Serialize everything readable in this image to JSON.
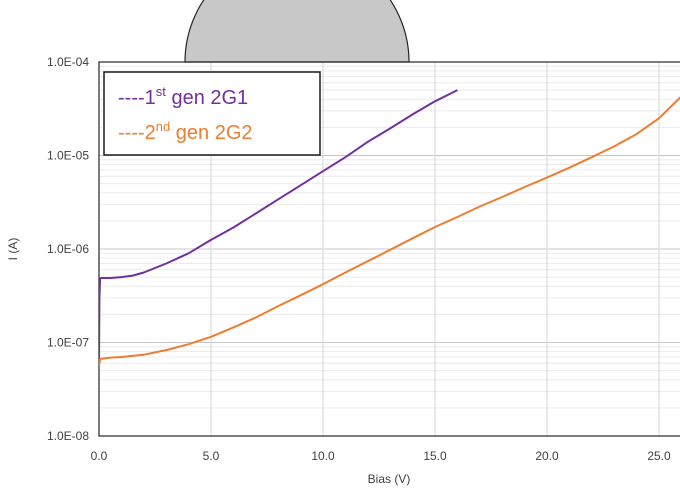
{
  "chart_data": {
    "type": "line",
    "title": "",
    "xlabel": "Bias (V)",
    "ylabel": "I (A)",
    "xlim": [
      0,
      26
    ],
    "ylim": [
      1e-08,
      0.0001
    ],
    "y_scale": "log",
    "grid": true,
    "legend_position": "top-left",
    "x_ticks": [
      "0.0",
      "5.0",
      "10.0",
      "15.0",
      "20.0",
      "25.0"
    ],
    "x_tick_values": [
      0,
      5,
      10,
      15,
      20,
      25
    ],
    "y_ticks": [
      "1.0E-08",
      "1.0E-07",
      "1.0E-06",
      "1.0E-05",
      "1.0E-04"
    ],
    "y_tick_values": [
      1e-08,
      1e-07,
      1e-06,
      1e-05,
      0.0001
    ],
    "series": [
      {
        "name": "----1st gen 2G1",
        "legend_prefix": "----1",
        "legend_sup": "st",
        "legend_suffix": " gen 2G1",
        "color": "#7030A0",
        "x": [
          0.0,
          0.02,
          0.05,
          0.1,
          0.2,
          0.5,
          1.0,
          1.5,
          2.0,
          3.0,
          4.0,
          5.0,
          6.0,
          7.0,
          8.0,
          9.0,
          10.0,
          11.0,
          12.0,
          13.0,
          14.0,
          15.0,
          16.0
        ],
        "y": [
          6e-08,
          3e-07,
          4.8e-07,
          4.9e-07,
          4.9e-07,
          4.9e-07,
          5e-07,
          5.2e-07,
          5.6e-07,
          7e-07,
          9e-07,
          1.25e-06,
          1.7e-06,
          2.4e-06,
          3.4e-06,
          4.8e-06,
          6.8e-06,
          9.6e-06,
          1.4e-05,
          1.95e-05,
          2.75e-05,
          3.8e-05,
          5e-05
        ]
      },
      {
        "name": "----2nd gen 2G2",
        "legend_prefix": "----2",
        "legend_sup": "nd",
        "legend_suffix": " gen 2G2",
        "color": "#ED7D31",
        "x": [
          0.0,
          0.05,
          0.1,
          0.3,
          0.5,
          1.0,
          2.0,
          3.0,
          4.0,
          5.0,
          6.0,
          7.0,
          8.0,
          9.0,
          10.0,
          11.0,
          12.0,
          13.0,
          14.0,
          15.0,
          16.0,
          17.0,
          18.0,
          19.0,
          20.0,
          21.0,
          22.0,
          23.0,
          24.0,
          25.0,
          26.0
        ],
        "y": [
          5.6e-08,
          6.6e-08,
          6.7e-08,
          6.8e-08,
          6.9e-08,
          7e-08,
          7.4e-08,
          8.3e-08,
          9.6e-08,
          1.15e-07,
          1.45e-07,
          1.85e-07,
          2.45e-07,
          3.2e-07,
          4.2e-07,
          5.6e-07,
          7.4e-07,
          9.8e-07,
          1.3e-06,
          1.72e-06,
          2.2e-06,
          2.85e-06,
          3.6e-06,
          4.6e-06,
          5.8e-06,
          7.4e-06,
          9.6e-06,
          1.25e-05,
          1.7e-05,
          2.5e-05,
          4.3e-05
        ]
      }
    ]
  }
}
